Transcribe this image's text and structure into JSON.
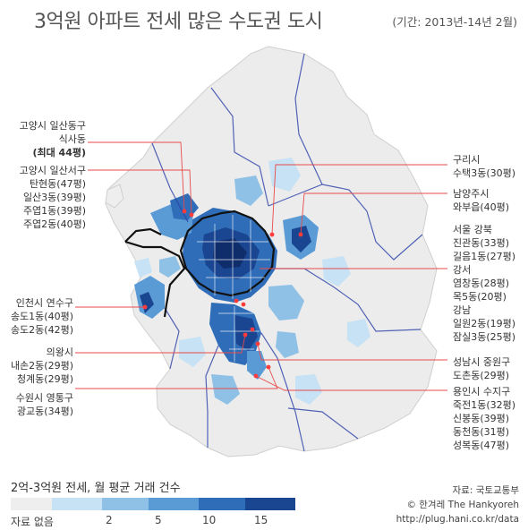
{
  "header": {
    "title": "3억원 아파트 전세 많은 수도권 도시",
    "period": "(기간: 2013년-14년 2월)"
  },
  "labels_left": [
    {
      "lines": [
        "고양시 일산동구",
        "식사동",
        "(최대 44평)"
      ],
      "bold_line": 2
    },
    {
      "lines": [
        "고양시 일산서구",
        "탄현동(47평)",
        "일산3동(39평)",
        "주엽1동(39평)",
        "주엽2동(40평)"
      ]
    },
    {
      "lines": [
        "인천시 연수구",
        "송도1동(40평)",
        "송도2동(42평)"
      ]
    },
    {
      "lines": [
        "의왕시",
        "내손2동(29평)",
        "청계동(29평)"
      ]
    },
    {
      "lines": [
        "수원시 영통구",
        "광교동(34평)"
      ]
    }
  ],
  "labels_right": [
    {
      "lines": [
        "구리시",
        "수택3동(30평)"
      ]
    },
    {
      "lines": [
        "남양주시",
        "와부읍(40평)"
      ]
    },
    {
      "lines": [
        "서울 강북",
        "진관동(33평)",
        "길음1동(27평)",
        "강서",
        "염창동(28평)",
        "목5동(20평)",
        "강남",
        "일원2동(19평)",
        "잠실3동(25평)"
      ]
    },
    {
      "lines": [
        "성남시 중원구",
        "도촌동(29평)"
      ]
    },
    {
      "lines": [
        "용인시 수지구",
        "죽전1동(32평)",
        "신봉동(39평)",
        "동천동(31평)",
        "성복동(47평)"
      ]
    }
  ],
  "legend": {
    "title": "2억-3억원 전세, 월 평균 거래 건수",
    "no_data_label": "자료 없음",
    "tick_labels": [
      "2",
      "5",
      "10",
      "15"
    ],
    "colors": [
      "#eeeeee",
      "#c6e2f4",
      "#8fc1e6",
      "#5a9bd6",
      "#2f6db8",
      "#1a4590",
      "#0f2d6b"
    ]
  },
  "credits": {
    "source": "자료: 국토교통부",
    "copyright": "© 한겨레 The Hankyoreh",
    "url": "http://plug.hani.co.kr/data"
  },
  "colors": {
    "leader_line": "#e84a4a",
    "marker": "#ff3b3b",
    "province_border": "#2a3fa8",
    "seoul_border": "#111111",
    "land": "#ececec"
  }
}
